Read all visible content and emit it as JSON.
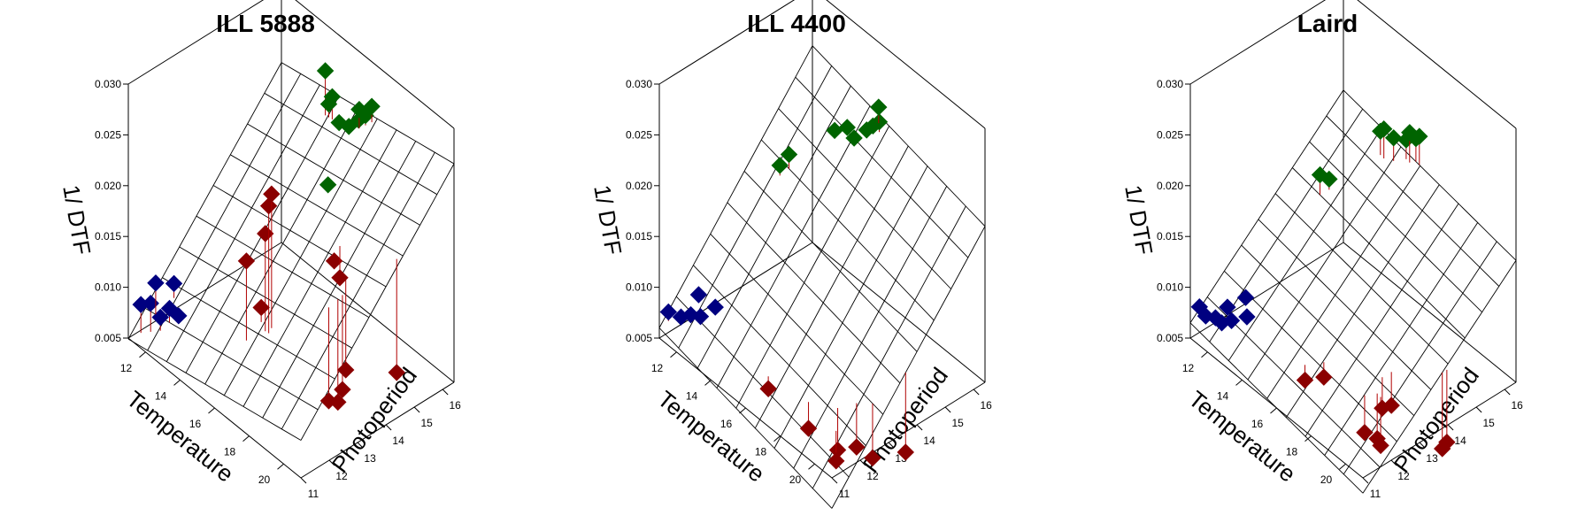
{
  "chart_data": [
    {
      "type": "scatter",
      "title": "ILL 5888",
      "xlabel": "Temperature",
      "ylabel": "Photoperiod",
      "zlabel": "1/ DTF",
      "xticks": [
        "12",
        "14",
        "16",
        "18",
        "20"
      ],
      "yticks": [
        "11",
        "12",
        "13",
        "14",
        "15",
        "16"
      ],
      "zticks": [
        "0.005",
        "0.010",
        "0.015",
        "0.020",
        "0.025",
        "0.030"
      ],
      "xlim": [
        11,
        21
      ],
      "ylim": [
        11,
        16.4
      ],
      "zlim": [
        0.005,
        0.03
      ],
      "surface": {
        "t0": 11,
        "p0": 11,
        "z0": 0.0049,
        "dt": 0.00038,
        "dp": 0.0033
      },
      "series": [
        {
          "color": "#000080",
          "points": [
            {
              "t": 11.4,
              "p": 11.2,
              "z": 0.0085
            },
            {
              "t": 11.8,
              "p": 11.3,
              "z": 0.009
            },
            {
              "t": 12.2,
              "p": 11.4,
              "z": 0.008
            },
            {
              "t": 12.4,
              "p": 11.6,
              "z": 0.0088
            },
            {
              "t": 11.6,
              "p": 11.6,
              "z": 0.0102
            },
            {
              "t": 12.6,
              "p": 11.8,
              "z": 0.008
            },
            {
              "t": 12.0,
              "p": 12.0,
              "z": 0.01
            }
          ]
        },
        {
          "color": "#8b0000",
          "points": [
            {
              "t": 16.2,
              "p": 12.0,
              "z": 0.018
            },
            {
              "t": 16.8,
              "p": 12.3,
              "z": 0.021
            },
            {
              "t": 17.0,
              "p": 12.3,
              "z": 0.024
            },
            {
              "t": 17.0,
              "p": 12.4,
              "z": 0.025
            },
            {
              "t": 16.4,
              "p": 12.4,
              "z": 0.013
            },
            {
              "t": 19.0,
              "p": 13.2,
              "z": 0.006
            },
            {
              "t": 19.2,
              "p": 13.4,
              "z": 0.0058
            },
            {
              "t": 19.3,
              "p": 13.5,
              "z": 0.007
            },
            {
              "t": 19.0,
              "p": 13.8,
              "z": 0.008
            },
            {
              "t": 18.0,
              "p": 14.0,
              "z": 0.017
            },
            {
              "t": 18.0,
              "p": 14.2,
              "z": 0.015
            },
            {
              "t": 20.8,
              "p": 14.5,
              "z": 0.009
            }
          ]
        },
        {
          "color": "#006400",
          "points": [
            {
              "t": 16.0,
              "p": 15.0,
              "z": 0.02
            },
            {
              "t": 14.2,
              "p": 16.0,
              "z": 0.027
            },
            {
              "t": 14.6,
              "p": 16.0,
              "z": 0.025
            },
            {
              "t": 14.4,
              "p": 16.0,
              "z": 0.024
            },
            {
              "t": 15.0,
              "p": 16.0,
              "z": 0.023
            },
            {
              "t": 15.4,
              "p": 16.1,
              "z": 0.023
            },
            {
              "t": 15.8,
              "p": 16.2,
              "z": 0.024
            },
            {
              "t": 16.0,
              "p": 16.1,
              "z": 0.0255
            },
            {
              "t": 16.2,
              "p": 16.2,
              "z": 0.025
            },
            {
              "t": 16.4,
              "p": 16.3,
              "z": 0.026
            }
          ]
        }
      ]
    },
    {
      "type": "scatter",
      "title": "ILL 4400",
      "xlabel": "Temperature",
      "ylabel": "Photoperiod",
      "zlabel": "1/ DTF",
      "xticks": [
        "12",
        "14",
        "16",
        "18",
        "20"
      ],
      "yticks": [
        "11",
        "12",
        "13",
        "14",
        "15",
        "16"
      ],
      "zticks": [
        "0.005",
        "0.010",
        "0.015",
        "0.020",
        "0.025",
        "0.030"
      ],
      "xlim": [
        11,
        21
      ],
      "ylim": [
        11,
        16.4
      ],
      "zlim": [
        0.005,
        0.03
      ],
      "surface": {
        "t0": 11,
        "p0": 11,
        "z0": 0.006,
        "dt": -0.0004,
        "dp": 0.0034
      },
      "series": [
        {
          "color": "#000080",
          "points": [
            {
              "t": 11.2,
              "p": 11.2,
              "z": 0.0075
            },
            {
              "t": 11.6,
              "p": 11.4,
              "z": 0.0072
            },
            {
              "t": 12.0,
              "p": 11.5,
              "z": 0.0078
            },
            {
              "t": 12.4,
              "p": 11.6,
              "z": 0.008
            },
            {
              "t": 11.8,
              "p": 11.9,
              "z": 0.0088
            },
            {
              "t": 12.6,
              "p": 12.0,
              "z": 0.0085
            }
          ]
        },
        {
          "color": "#8b0000",
          "points": [
            {
              "t": 16.0,
              "p": 11.8,
              "z": 0.0055
            },
            {
              "t": 18.0,
              "p": 12.0,
              "z": 0.004
            },
            {
              "t": 19.2,
              "p": 12.3,
              "z": 0.003
            },
            {
              "t": 19.6,
              "p": 12.0,
              "z": 0.003
            },
            {
              "t": 19.8,
              "p": 12.6,
              "z": 0.0036
            },
            {
              "t": 20.4,
              "p": 12.8,
              "z": 0.003
            },
            {
              "t": 21.0,
              "p": 13.6,
              "z": 0.003
            }
          ]
        },
        {
          "color": "#006400",
          "points": [
            {
              "t": 12.4,
              "p": 14.4,
              "z": 0.018
            },
            {
              "t": 12.6,
              "p": 14.6,
              "z": 0.019
            },
            {
              "t": 13.6,
              "p": 15.6,
              "z": 0.021
            },
            {
              "t": 14.0,
              "p": 15.8,
              "z": 0.0215
            },
            {
              "t": 14.4,
              "p": 15.8,
              "z": 0.021
            },
            {
              "t": 14.8,
              "p": 16.0,
              "z": 0.022
            },
            {
              "t": 15.0,
              "p": 16.1,
              "z": 0.0225
            },
            {
              "t": 15.2,
              "p": 16.2,
              "z": 0.023
            },
            {
              "t": 15.0,
              "p": 16.3,
              "z": 0.024
            }
          ]
        }
      ]
    },
    {
      "type": "scatter",
      "title": "Laird",
      "xlabel": "Temperature",
      "ylabel": "Photoperiod",
      "zlabel": "1/ DTF",
      "xticks": [
        "12",
        "14",
        "16",
        "18",
        "20"
      ],
      "yticks": [
        "11",
        "12",
        "13",
        "14",
        "15",
        "16"
      ],
      "zticks": [
        "0.005",
        "0.010",
        "0.015",
        "0.020",
        "0.025",
        "0.030"
      ],
      "xlim": [
        11,
        21
      ],
      "ylim": [
        11,
        16.4
      ],
      "zlim": [
        0.005,
        0.03
      ],
      "surface": {
        "t0": 11,
        "p0": 11,
        "z0": 0.0065,
        "dt": -0.0003,
        "dp": 0.0025
      },
      "series": [
        {
          "color": "#000080",
          "points": [
            {
              "t": 11.2,
              "p": 11.2,
              "z": 0.008
            },
            {
              "t": 11.4,
              "p": 11.3,
              "z": 0.0072
            },
            {
              "t": 11.8,
              "p": 11.4,
              "z": 0.0074
            },
            {
              "t": 12.0,
              "p": 11.5,
              "z": 0.007
            },
            {
              "t": 12.4,
              "p": 11.6,
              "z": 0.0076
            },
            {
              "t": 12.0,
              "p": 11.7,
              "z": 0.0082
            },
            {
              "t": 12.8,
              "p": 11.9,
              "z": 0.008
            },
            {
              "t": 12.4,
              "p": 12.1,
              "z": 0.009
            }
          ]
        },
        {
          "color": "#8b0000",
          "points": [
            {
              "t": 16.0,
              "p": 12.0,
              "z": 0.006
            },
            {
              "t": 16.6,
              "p": 12.3,
              "z": 0.0066
            },
            {
              "t": 18.8,
              "p": 12.4,
              "z": 0.004
            },
            {
              "t": 19.2,
              "p": 12.6,
              "z": 0.0036
            },
            {
              "t": 19.4,
              "p": 12.6,
              "z": 0.0032
            },
            {
              "t": 19.0,
              "p": 12.9,
              "z": 0.0058
            },
            {
              "t": 19.2,
              "p": 13.1,
              "z": 0.006
            },
            {
              "t": 21.0,
              "p": 13.8,
              "z": 0.003
            },
            {
              "t": 21.1,
              "p": 13.9,
              "z": 0.0036
            }
          ]
        },
        {
          "color": "#006400",
          "points": [
            {
              "t": 12.6,
              "p": 14.6,
              "z": 0.017
            },
            {
              "t": 12.8,
              "p": 14.8,
              "z": 0.0165
            },
            {
              "t": 13.8,
              "p": 16.0,
              "z": 0.0205
            },
            {
              "t": 14.0,
              "p": 16.0,
              "z": 0.021
            },
            {
              "t": 14.4,
              "p": 16.1,
              "z": 0.0205
            },
            {
              "t": 14.8,
              "p": 16.3,
              "z": 0.0205
            },
            {
              "t": 15.0,
              "p": 16.3,
              "z": 0.0215
            },
            {
              "t": 15.4,
              "p": 16.4,
              "z": 0.0215
            },
            {
              "t": 15.2,
              "p": 16.4,
              "z": 0.021
            }
          ]
        }
      ]
    }
  ]
}
